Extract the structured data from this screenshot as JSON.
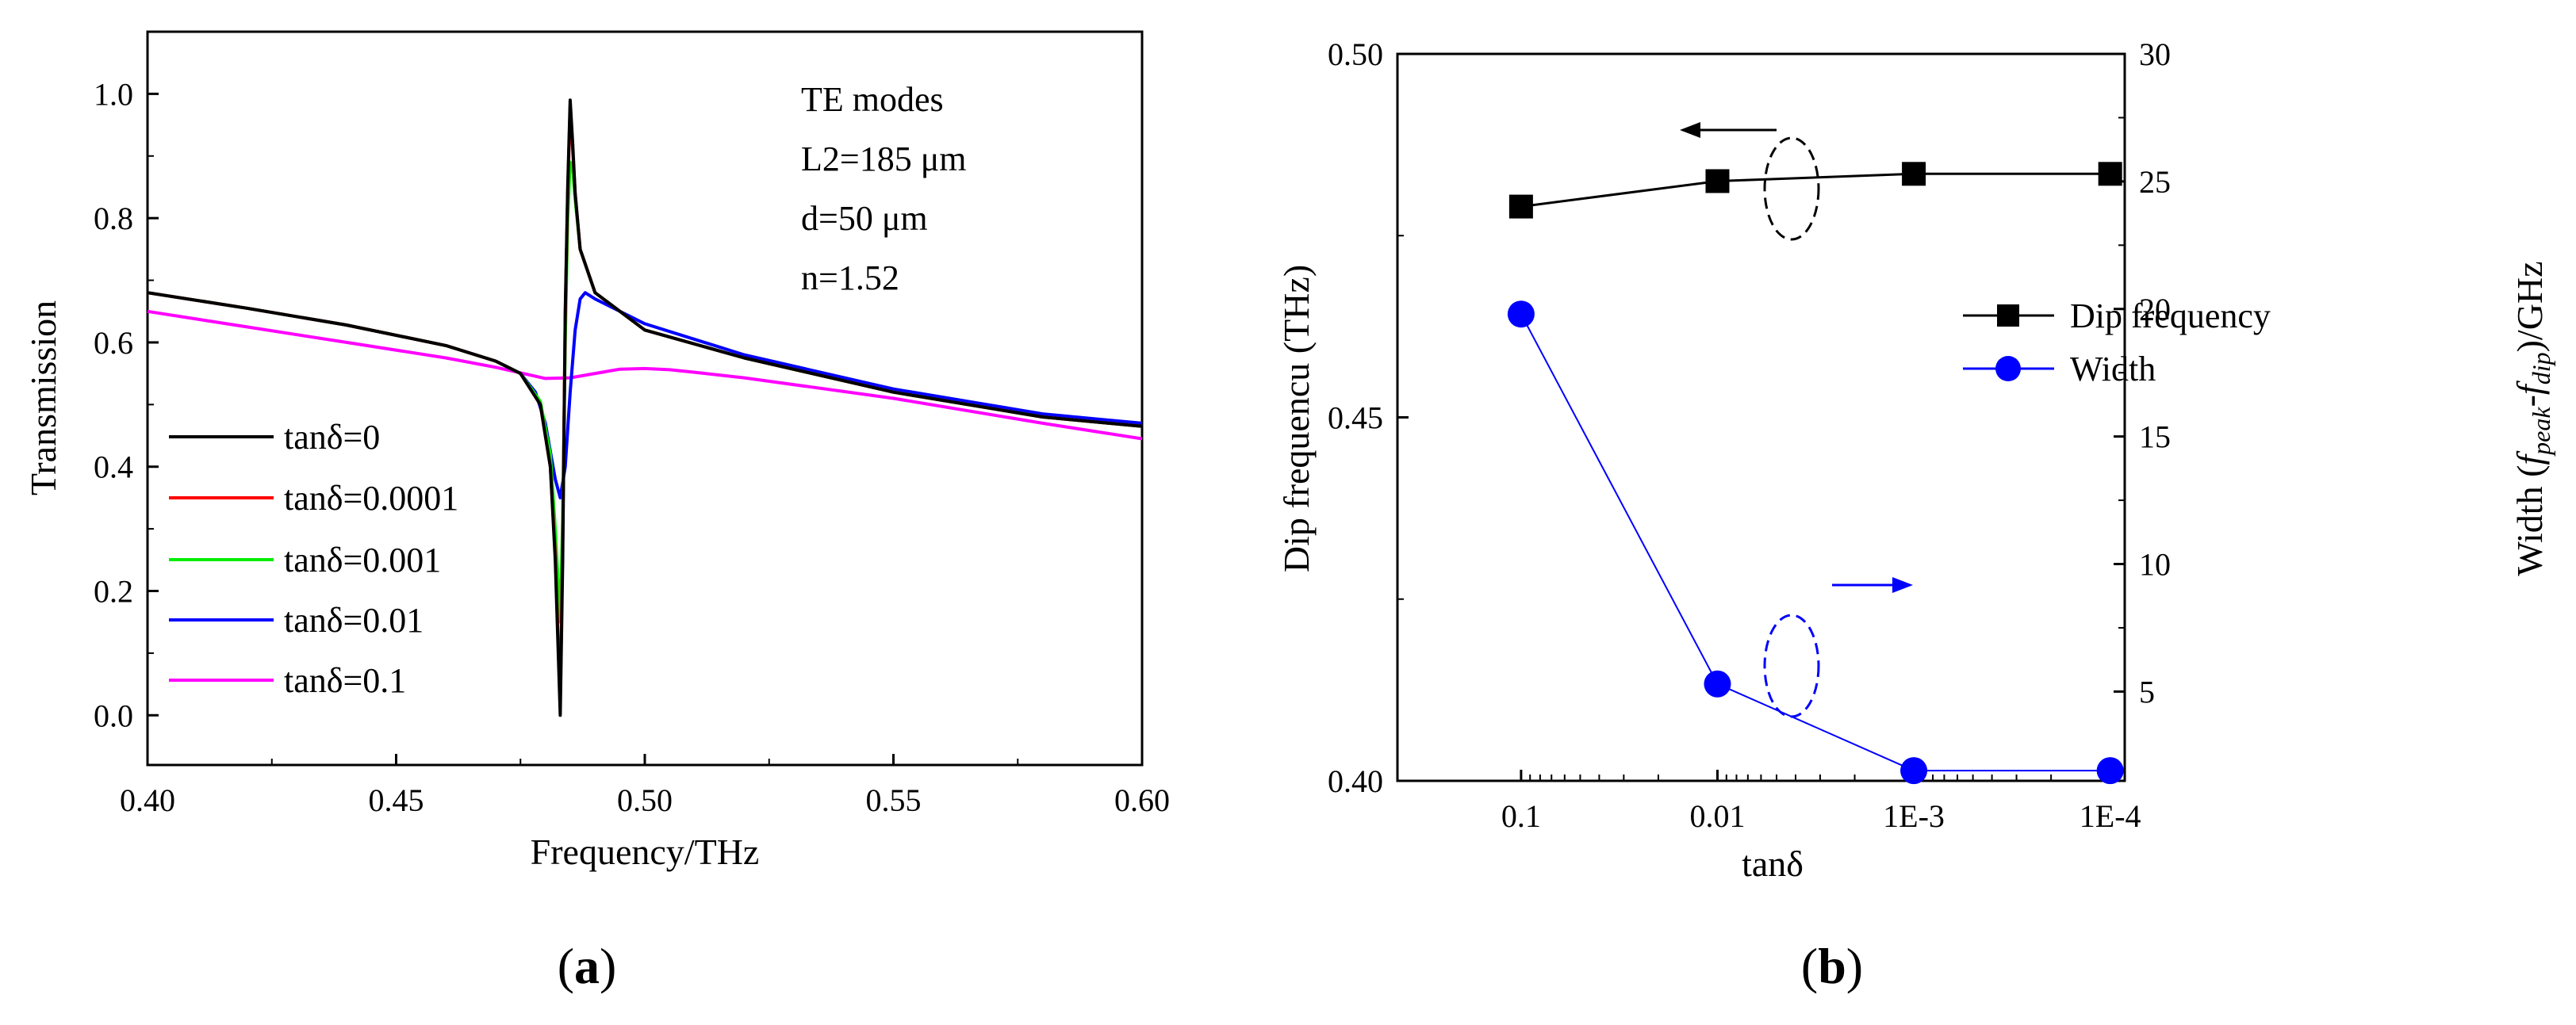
{
  "chart_data": [
    {
      "id": "a",
      "type": "line",
      "panel_label": {
        "open": "(",
        "letter": "a",
        "close": ")"
      },
      "xlabel": "Frequency/THz",
      "ylabel": "Transmission",
      "xlim": [
        0.4,
        0.6
      ],
      "ylim": [
        -0.08,
        1.1
      ],
      "xticks": [
        0.4,
        0.45,
        0.5,
        0.55,
        0.6
      ],
      "xtick_labels": [
        "0.40",
        "0.45",
        "0.50",
        "0.55",
        "0.60"
      ],
      "yticks": [
        0.0,
        0.2,
        0.4,
        0.6,
        0.8,
        1.0
      ],
      "ytick_labels": [
        "0.0",
        "0.2",
        "0.4",
        "0.6",
        "0.8",
        "1.0"
      ],
      "annotations": [
        "TE modes",
        "L2=185 μm",
        "d=50 μm",
        "n=1.52"
      ],
      "series": [
        {
          "name": "tanδ=0",
          "color": "#000000",
          "x": [
            0.4,
            0.42,
            0.44,
            0.46,
            0.47,
            0.475,
            0.479,
            0.481,
            0.482,
            0.483,
            0.4835,
            0.484,
            0.4845,
            0.485,
            0.4855,
            0.486,
            0.487,
            0.49,
            0.5,
            0.52,
            0.55,
            0.58,
            0.6
          ],
          "y": [
            0.68,
            0.655,
            0.628,
            0.595,
            0.57,
            0.55,
            0.5,
            0.4,
            0.25,
            0.0,
            0.25,
            0.65,
            0.85,
            0.99,
            0.92,
            0.84,
            0.75,
            0.68,
            0.62,
            0.575,
            0.52,
            0.48,
            0.465
          ]
        },
        {
          "name": "tanδ=0.0001",
          "color": "#ff0000",
          "x": [
            0.4,
            0.42,
            0.44,
            0.46,
            0.47,
            0.475,
            0.479,
            0.481,
            0.482,
            0.483,
            0.4835,
            0.484,
            0.4845,
            0.485,
            0.4855,
            0.486,
            0.487,
            0.49,
            0.5,
            0.52,
            0.55,
            0.58,
            0.6
          ],
          "y": [
            0.68,
            0.655,
            0.628,
            0.595,
            0.57,
            0.55,
            0.5,
            0.4,
            0.26,
            0.02,
            0.28,
            0.64,
            0.84,
            0.98,
            0.91,
            0.84,
            0.75,
            0.68,
            0.62,
            0.575,
            0.52,
            0.48,
            0.465
          ]
        },
        {
          "name": "tanδ=0.001",
          "color": "#00ee00",
          "x": [
            0.4,
            0.42,
            0.44,
            0.46,
            0.47,
            0.475,
            0.479,
            0.481,
            0.482,
            0.483,
            0.4835,
            0.484,
            0.4845,
            0.485,
            0.4855,
            0.486,
            0.487,
            0.49,
            0.5,
            0.52,
            0.55,
            0.58,
            0.6
          ],
          "y": [
            0.68,
            0.655,
            0.628,
            0.595,
            0.57,
            0.55,
            0.505,
            0.42,
            0.3,
            0.15,
            0.32,
            0.6,
            0.8,
            0.89,
            0.88,
            0.83,
            0.75,
            0.68,
            0.62,
            0.575,
            0.52,
            0.48,
            0.465
          ]
        },
        {
          "name": "tanδ=0.01",
          "color": "#0000ff",
          "x": [
            0.4,
            0.42,
            0.44,
            0.46,
            0.47,
            0.475,
            0.478,
            0.48,
            0.482,
            0.483,
            0.484,
            0.485,
            0.486,
            0.487,
            0.488,
            0.49,
            0.5,
            0.52,
            0.55,
            0.58,
            0.6
          ],
          "y": [
            0.68,
            0.655,
            0.628,
            0.595,
            0.57,
            0.55,
            0.52,
            0.47,
            0.38,
            0.35,
            0.4,
            0.52,
            0.62,
            0.67,
            0.68,
            0.67,
            0.63,
            0.58,
            0.525,
            0.485,
            0.47
          ]
        },
        {
          "name": "tanδ=0.1",
          "color": "#ff00ff",
          "x": [
            0.4,
            0.42,
            0.44,
            0.46,
            0.47,
            0.48,
            0.485,
            0.49,
            0.495,
            0.5,
            0.505,
            0.51,
            0.52,
            0.55,
            0.58,
            0.6
          ],
          "y": [
            0.65,
            0.625,
            0.6,
            0.575,
            0.56,
            0.542,
            0.543,
            0.55,
            0.557,
            0.558,
            0.556,
            0.552,
            0.543,
            0.51,
            0.47,
            0.445
          ]
        }
      ]
    },
    {
      "id": "b",
      "type": "line",
      "panel_label": {
        "open": "(",
        "letter": "b",
        "close": ")"
      },
      "xlabel": "tanδ",
      "ylabel": "Dip frequencu (THz)",
      "ylabel_right": {
        "prefix": "Width (",
        "f1": "f",
        "sub1": "peak",
        "dash": "-",
        "f2": "f",
        "sub2": "dip",
        "suffix": ")/GHz"
      },
      "categories": [
        "0.1",
        "0.01",
        "1E-3",
        "1E-4"
      ],
      "ylim": [
        0.4,
        0.5
      ],
      "yticks": [
        0.4,
        0.45,
        0.5
      ],
      "ytick_labels": [
        "0.40",
        "0.45",
        "0.50"
      ],
      "ylim_right": [
        1.5,
        30
      ],
      "yticks_right": [
        5,
        10,
        15,
        20,
        25,
        30
      ],
      "ytick_labels_right": [
        "5",
        "10",
        "15",
        "20",
        "25",
        "30"
      ],
      "series": [
        {
          "name": "Dip frequency",
          "color": "#000000",
          "marker": "square",
          "axis": "left",
          "values": [
            0.479,
            0.4825,
            0.4835,
            0.4835
          ]
        },
        {
          "name": "Width",
          "color": "#0000ff",
          "marker": "circle",
          "axis": "right",
          "values": [
            19.8,
            5.3,
            1.9,
            1.9
          ]
        }
      ]
    }
  ]
}
